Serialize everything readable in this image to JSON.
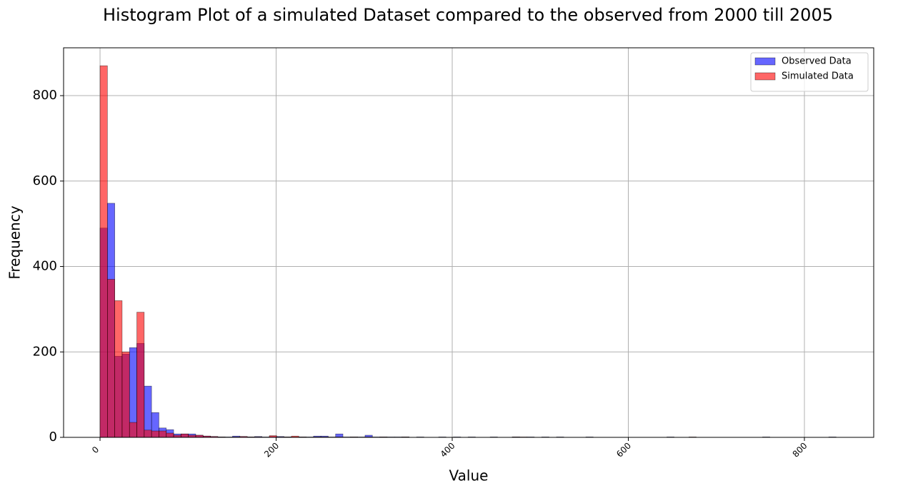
{
  "chart_data": {
    "type": "histogram",
    "title": "Histogram Plot of a simulated Dataset compared to the observed from 2000 till 2005",
    "x_label": "Value",
    "y_label": "Frequency",
    "bins": [
      0,
      8.36,
      16.72,
      25.08,
      33.44,
      41.8,
      50.16,
      58.52,
      66.88,
      75.24,
      83.6,
      91.96,
      100.32,
      108.68,
      117.04,
      125.4,
      133.76,
      142.12,
      150.48,
      158.84,
      167.2,
      175.56,
      183.92,
      192.28,
      200.64,
      209,
      217.36,
      225.72,
      234.08,
      242.44,
      250.8,
      259.16,
      267.52,
      275.88,
      284.24,
      292.6,
      300.96,
      309.32,
      317.68,
      326.04,
      334.4,
      342.76,
      351.12,
      359.48,
      367.84,
      376.2,
      384.56,
      392.92,
      401.28,
      409.64,
      418,
      426.36,
      434.72,
      443.08,
      451.44,
      459.8,
      468.16,
      476.52,
      484.88,
      493.24,
      501.6,
      509.96,
      518.32,
      526.68,
      535.04,
      543.4,
      551.76,
      560.12,
      568.48,
      576.84,
      585.2,
      593.56,
      601.92,
      610.28,
      618.64,
      627,
      635.36,
      643.72,
      652.08,
      660.44,
      668.8,
      677.16,
      685.52,
      693.88,
      702.24,
      710.6,
      718.96,
      727.32,
      735.68,
      744.04,
      752.4,
      760.76,
      769.12,
      777.48,
      785.84,
      794.2,
      802.56,
      810.92,
      819.28,
      827.64,
      836
    ],
    "series": [
      {
        "name": "Observed Data",
        "color": "#0000ff",
        "values": [
          490,
          548,
          190,
          195,
          210,
          220,
          120,
          58,
          22,
          18,
          8,
          8,
          8,
          5,
          3,
          2,
          1,
          1,
          3,
          2,
          1,
          2,
          1,
          2,
          2,
          1,
          1,
          1,
          1,
          3,
          3,
          1,
          8,
          1,
          1,
          1,
          5,
          1,
          1,
          1,
          1,
          1,
          0,
          1,
          0,
          0,
          1,
          0,
          1,
          0,
          1,
          0,
          0,
          1,
          0,
          0,
          1,
          0,
          1,
          0,
          1,
          0,
          1,
          0,
          0,
          0,
          1,
          0,
          0,
          0,
          0,
          0,
          0,
          0,
          0,
          0,
          0,
          1,
          0,
          0,
          0,
          0,
          0,
          0,
          0,
          0,
          0,
          0,
          0,
          0,
          1,
          0,
          0,
          0,
          0,
          0,
          0,
          0,
          0,
          1
        ]
      },
      {
        "name": "Simulated Data",
        "color": "#ff0000",
        "values": [
          870,
          370,
          320,
          200,
          35,
          293,
          17,
          15,
          15,
          10,
          5,
          8,
          5,
          5,
          3,
          2,
          1,
          0,
          1,
          2,
          1,
          1,
          0,
          4,
          1,
          1,
          3,
          1,
          0,
          1,
          1,
          0,
          1,
          0,
          1,
          0,
          1,
          0,
          1,
          0,
          0,
          1,
          0,
          0,
          0,
          0,
          0,
          0,
          0,
          0,
          0,
          0,
          0,
          0,
          0,
          0,
          1,
          1,
          0,
          0,
          0,
          0,
          0,
          0,
          0,
          0,
          0,
          0,
          0,
          0,
          0,
          0,
          0,
          0,
          0,
          0,
          0,
          0,
          0,
          0,
          1,
          0,
          0,
          0,
          0,
          0,
          0,
          0,
          0,
          0,
          0,
          0,
          0,
          0,
          0,
          0,
          0,
          0,
          0,
          0
        ]
      }
    ],
    "xlim": [
      -41.4,
      878.7
    ],
    "ylim": [
      0,
      912
    ],
    "xticks": [
      0,
      200,
      400,
      600,
      800
    ],
    "yticks": [
      0,
      200,
      400,
      600,
      800
    ],
    "grid": true,
    "legend": "upper right"
  }
}
